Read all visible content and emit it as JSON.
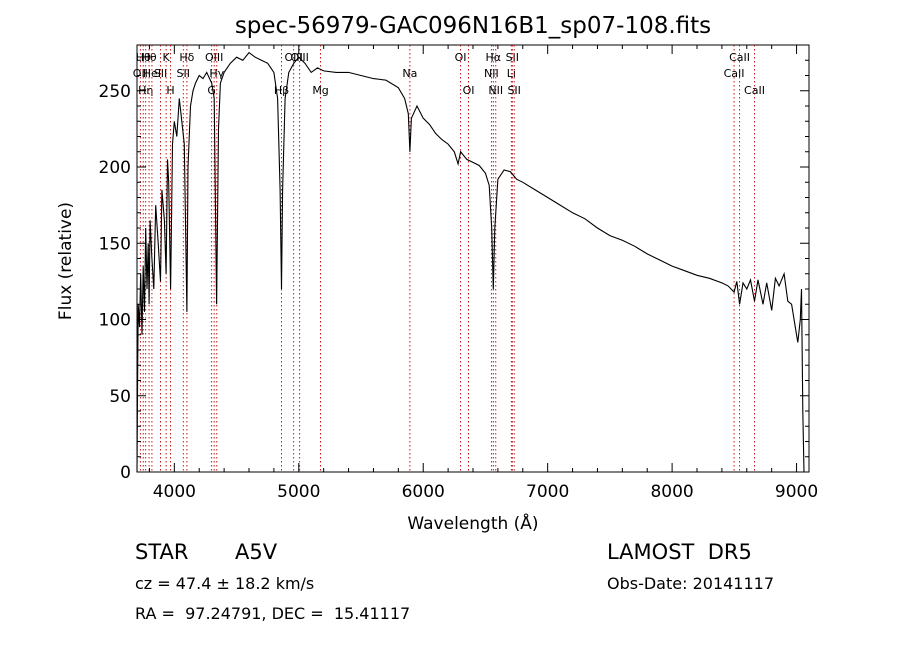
{
  "chart_data": {
    "type": "line",
    "title": "spec-56979-GAC096N16B1_sp07-108.fits",
    "xlabel": "Wavelength (Å)",
    "ylabel": "Flux (relative)",
    "xlim": [
      3700,
      9100
    ],
    "ylim": [
      0,
      280
    ],
    "x_ticks": [
      4000,
      5000,
      6000,
      7000,
      8000,
      9000
    ],
    "y_ticks": [
      0,
      50,
      100,
      150,
      200,
      250
    ],
    "series": [
      {
        "points": [
          [
            3700,
            0
          ],
          [
            3705,
            60
          ],
          [
            3710,
            110
          ],
          [
            3720,
            95
          ],
          [
            3730,
            130
          ],
          [
            3740,
            90
          ],
          [
            3750,
            135
          ],
          [
            3760,
            105
          ],
          [
            3770,
            160
          ],
          [
            3780,
            120
          ],
          [
            3790,
            150
          ],
          [
            3797,
            110
          ],
          [
            3805,
            165
          ],
          [
            3820,
            140
          ],
          [
            3835,
            120
          ],
          [
            3850,
            175
          ],
          [
            3870,
            150
          ],
          [
            3889,
            125
          ],
          [
            3900,
            185
          ],
          [
            3920,
            165
          ],
          [
            3934,
            130
          ],
          [
            3945,
            205
          ],
          [
            3955,
            190
          ],
          [
            3970,
            120
          ],
          [
            3985,
            215
          ],
          [
            4000,
            230
          ],
          [
            4020,
            220
          ],
          [
            4040,
            245
          ],
          [
            4060,
            230
          ],
          [
            4080,
            215
          ],
          [
            4101,
            105
          ],
          [
            4110,
            200
          ],
          [
            4130,
            240
          ],
          [
            4150,
            250
          ],
          [
            4170,
            255
          ],
          [
            4200,
            260
          ],
          [
            4230,
            258
          ],
          [
            4260,
            262
          ],
          [
            4300,
            255
          ],
          [
            4320,
            245
          ],
          [
            4340,
            110
          ],
          [
            4355,
            225
          ],
          [
            4370,
            255
          ],
          [
            4400,
            262
          ],
          [
            4450,
            268
          ],
          [
            4500,
            272
          ],
          [
            4550,
            270
          ],
          [
            4600,
            275
          ],
          [
            4650,
            272
          ],
          [
            4700,
            270
          ],
          [
            4750,
            268
          ],
          [
            4800,
            262
          ],
          [
            4830,
            245
          ],
          [
            4850,
            185
          ],
          [
            4861,
            120
          ],
          [
            4870,
            185
          ],
          [
            4890,
            245
          ],
          [
            4920,
            262
          ],
          [
            4960,
            268
          ],
          [
            5000,
            272
          ],
          [
            5050,
            268
          ],
          [
            5100,
            262
          ],
          [
            5150,
            265
          ],
          [
            5200,
            263
          ],
          [
            5300,
            262
          ],
          [
            5400,
            262
          ],
          [
            5500,
            260
          ],
          [
            5600,
            258
          ],
          [
            5700,
            257
          ],
          [
            5800,
            252
          ],
          [
            5850,
            245
          ],
          [
            5880,
            235
          ],
          [
            5893,
            210
          ],
          [
            5905,
            232
          ],
          [
            5950,
            240
          ],
          [
            6000,
            232
          ],
          [
            6050,
            228
          ],
          [
            6100,
            222
          ],
          [
            6150,
            218
          ],
          [
            6200,
            215
          ],
          [
            6250,
            210
          ],
          [
            6280,
            202
          ],
          [
            6300,
            210
          ],
          [
            6350,
            205
          ],
          [
            6400,
            203
          ],
          [
            6450,
            201
          ],
          [
            6500,
            196
          ],
          [
            6530,
            188
          ],
          [
            6550,
            160
          ],
          [
            6563,
            120
          ],
          [
            6575,
            160
          ],
          [
            6600,
            192
          ],
          [
            6650,
            198
          ],
          [
            6700,
            197
          ],
          [
            6750,
            192
          ],
          [
            6800,
            190
          ],
          [
            6900,
            185
          ],
          [
            7000,
            180
          ],
          [
            7100,
            175
          ],
          [
            7200,
            170
          ],
          [
            7300,
            166
          ],
          [
            7400,
            160
          ],
          [
            7500,
            155
          ],
          [
            7600,
            152
          ],
          [
            7700,
            148
          ],
          [
            7800,
            143
          ],
          [
            7900,
            139
          ],
          [
            8000,
            135
          ],
          [
            8100,
            132
          ],
          [
            8200,
            129
          ],
          [
            8300,
            127
          ],
          [
            8400,
            124
          ],
          [
            8450,
            122
          ],
          [
            8498,
            118
          ],
          [
            8520,
            125
          ],
          [
            8542,
            110
          ],
          [
            8570,
            124
          ],
          [
            8600,
            120
          ],
          [
            8630,
            126
          ],
          [
            8662,
            112
          ],
          [
            8690,
            126
          ],
          [
            8730,
            110
          ],
          [
            8760,
            124
          ],
          [
            8800,
            106
          ],
          [
            8830,
            127
          ],
          [
            8860,
            122
          ],
          [
            8900,
            130
          ],
          [
            8930,
            112
          ],
          [
            8960,
            110
          ],
          [
            8990,
            95
          ],
          [
            9010,
            85
          ],
          [
            9030,
            100
          ],
          [
            9040,
            120
          ],
          [
            9050,
            40
          ],
          [
            9060,
            0
          ]
        ]
      }
    ],
    "line_markers": [
      {
        "x": 3727,
        "label": "OII",
        "row": 1
      },
      {
        "x": 3750,
        "label": "Hθ",
        "row": 0
      },
      {
        "x": 3770,
        "label": "Hη",
        "row": 2
      },
      {
        "x": 3797,
        "label": "Hθ",
        "row": 0
      },
      {
        "x": 3820,
        "label": "HeI",
        "row": 1
      },
      {
        "x": 3889,
        "label": "SII",
        "row": 1
      },
      {
        "x": 3934,
        "label": "K",
        "row": 0
      },
      {
        "x": 3969,
        "label": "H",
        "row": 2
      },
      {
        "x": 4072,
        "label": "SII",
        "row": 1
      },
      {
        "x": 4101,
        "label": "Hδ",
        "row": 0
      },
      {
        "x": 4300,
        "label": "G",
        "row": 2
      },
      {
        "x": 4320,
        "label": "OIII",
        "row": 0
      },
      {
        "x": 4341,
        "label": "Hγ",
        "row": 1
      },
      {
        "x": 4861,
        "label": "Hβ",
        "row": 2
      },
      {
        "x": 4959,
        "label": "OIII",
        "row": 0
      },
      {
        "x": 5007,
        "label": "OIII",
        "row": 0
      },
      {
        "x": 5175,
        "label": "Mg",
        "row": 2
      },
      {
        "x": 5893,
        "label": "Na",
        "row": 1
      },
      {
        "x": 6300,
        "label": "OI",
        "row": 0
      },
      {
        "x": 6364,
        "label": "OI",
        "row": 2
      },
      {
        "x": 6548,
        "label": "NII",
        "row": 1
      },
      {
        "x": 6563,
        "label": "Hα",
        "row": 0
      },
      {
        "x": 6583,
        "label": "NII",
        "row": 2
      },
      {
        "x": 6708,
        "label": "Li",
        "row": 1
      },
      {
        "x": 6716,
        "label": "SII",
        "row": 0
      },
      {
        "x": 6731,
        "label": "SII",
        "row": 2
      },
      {
        "x": 8498,
        "label": "CaII",
        "row": 1
      },
      {
        "x": 8542,
        "label": "CaII",
        "row": 0
      },
      {
        "x": 8662,
        "label": "CaII",
        "row": 2
      }
    ]
  },
  "info": {
    "class_label": "STAR",
    "subclass": "A5V",
    "survey": "LAMOST  DR5",
    "cz": "cz = 47.4 ± 18.2 km/s",
    "obs_date": "Obs-Date: 20141117",
    "coords": "RA =  97.24791, DEC =  15.41117"
  }
}
